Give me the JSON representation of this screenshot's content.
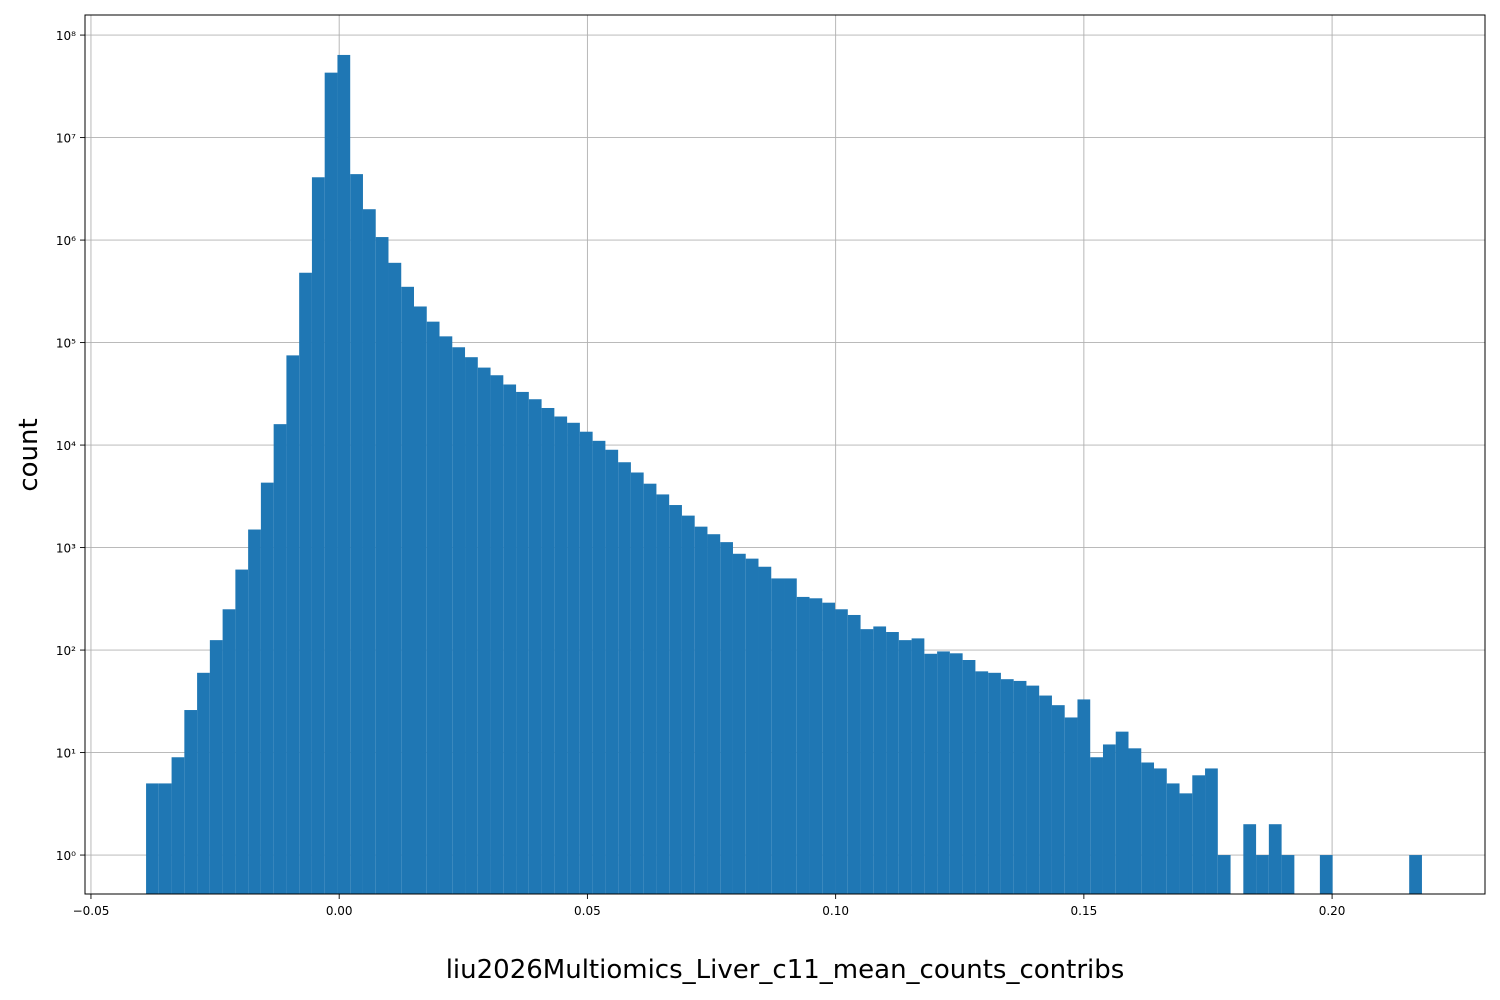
{
  "chart_data": {
    "type": "histogram",
    "xlabel": "liu2026Multiomics_Liver_c11_mean_counts_contribs",
    "ylabel": "count",
    "color": "#1f77b4",
    "log_y": true,
    "grid": true,
    "xlim": [
      -0.0512,
      0.2308
    ],
    "ylim": [
      0.417,
      157000000
    ],
    "xticks": [
      {
        "value": -0.05,
        "label": "−0.05"
      },
      {
        "value": 0,
        "label": "0.00"
      },
      0.05,
      {
        "value": 0.1,
        "label": "0.10"
      },
      0.15,
      {
        "value": 0.2,
        "label": "0.20"
      }
    ],
    "yticks": [
      {
        "value": 1,
        "label": "10⁰"
      },
      {
        "value": 10,
        "label": "10¹"
      },
      {
        "value": 100,
        "label": "10²"
      },
      {
        "value": 1000,
        "label": "10³"
      },
      {
        "value": 10000,
        "label": "10⁴"
      },
      {
        "value": 100000,
        "label": "10⁵"
      },
      {
        "value": 1000000,
        "label": "10⁶"
      },
      {
        "value": 10000000,
        "label": "10⁷"
      },
      {
        "value": 100000000,
        "label": "10⁸"
      }
    ],
    "bins": [
      -0.0389,
      -0.03633,
      -0.03376,
      -0.03119,
      -0.02862,
      -0.02605,
      -0.02348,
      -0.02091,
      -0.01834,
      -0.01577,
      -0.0132,
      -0.01063,
      -0.00806,
      -0.00549,
      -0.00292,
      -0.00035,
      0.00222,
      0.00479,
      0.00736,
      0.00993,
      0.0125,
      0.01507,
      0.01764,
      0.02021,
      0.02278,
      0.02535,
      0.02792,
      0.03049,
      0.03306,
      0.03563,
      0.0382,
      0.04077,
      0.04334,
      0.04591,
      0.04848,
      0.05105,
      0.05362,
      0.05619,
      0.05876,
      0.06133,
      0.0639,
      0.06647,
      0.06904,
      0.07161,
      0.07418,
      0.07675,
      0.07932,
      0.08189,
      0.08446,
      0.08703,
      0.0896,
      0.09217,
      0.09474,
      0.09731,
      0.09988,
      0.10245,
      0.10502,
      0.10759,
      0.11016,
      0.11273,
      0.1153,
      0.11787,
      0.12044,
      0.12301,
      0.12558,
      0.12815,
      0.13072,
      0.13329,
      0.13586,
      0.13843,
      0.141,
      0.14357,
      0.14614,
      0.14871,
      0.15128,
      0.15385,
      0.15642,
      0.15899,
      0.16156,
      0.16413,
      0.1667,
      0.16927,
      0.17184,
      0.17441,
      0.17698,
      0.17955,
      0.18212,
      0.18469,
      0.18726,
      0.18983,
      0.1924,
      0.19497,
      0.19754,
      0.20011,
      0.20268,
      0.20525,
      0.20782,
      0.21039,
      0.21296,
      0.21553,
      0.2181
    ],
    "values": [
      5,
      5,
      9,
      26,
      60,
      125,
      250,
      610,
      1500,
      4300,
      16000,
      75000,
      480000,
      4100000,
      43000000,
      64000000,
      4400000,
      2000000,
      1070000,
      600000,
      350000,
      225000,
      160000,
      115000,
      90000,
      72000,
      57000,
      48000,
      39000,
      33000,
      28000,
      23000,
      19000,
      16500,
      13500,
      11000,
      9000,
      6800,
      5400,
      4200,
      3300,
      2600,
      2050,
      1600,
      1350,
      1130,
      870,
      780,
      650,
      500,
      500,
      330,
      320,
      290,
      250,
      220,
      160,
      170,
      150,
      125,
      130,
      92,
      97,
      93,
      80,
      62,
      60,
      52,
      50,
      45,
      36,
      29,
      22,
      33,
      9,
      12,
      16,
      11,
      8,
      7,
      5,
      4,
      6,
      7,
      1,
      0,
      2,
      1,
      2,
      1,
      0,
      0,
      1,
      0,
      0,
      0,
      0,
      0,
      0,
      1
    ]
  }
}
